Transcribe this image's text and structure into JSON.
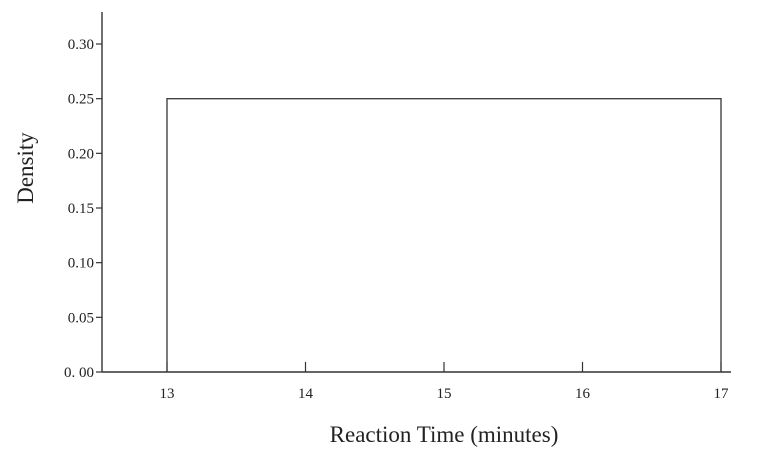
{
  "chart_data": {
    "type": "area",
    "distribution": "uniform",
    "title": "",
    "xlabel": "Reaction Time (minutes)",
    "ylabel": "Density",
    "xlim": [
      12.55,
      17.3
    ],
    "ylim": [
      0,
      0.33
    ],
    "x_ticks": [
      13,
      14,
      15,
      16,
      17
    ],
    "x_tick_labels": [
      "13",
      "14",
      "15",
      "16",
      "17"
    ],
    "y_ticks": [
      0,
      0.05,
      0.1,
      0.15,
      0.2,
      0.25,
      0.3
    ],
    "y_tick_labels": [
      "0. 00",
      "0.05",
      "0.10",
      "0.15",
      "0.20",
      "0.25",
      "0.30"
    ],
    "x": [
      13,
      13,
      17,
      17
    ],
    "y": [
      0,
      0.25,
      0.25,
      0
    ],
    "grid": false,
    "legend": "none"
  }
}
